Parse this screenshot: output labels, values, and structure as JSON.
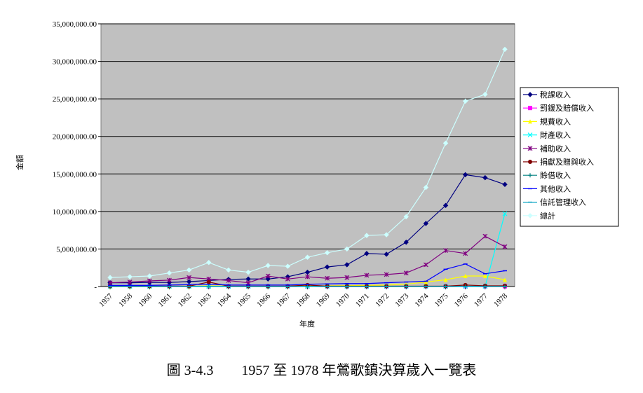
{
  "caption": "圖 3-4.3　　1957 至 1978 年鶯歌鎮決算歲入一覽表",
  "chart_data": {
    "type": "line",
    "title": "",
    "xlabel": "年度",
    "ylabel": "金額",
    "ylim": [
      0,
      35000000
    ],
    "y_ticks": [
      "-",
      "5,000,000.00",
      "10,000,000.00",
      "15,000,000.00",
      "20,000,000.00",
      "25,000,000.00",
      "30,000,000.00",
      "35,000,000.00"
    ],
    "grid": true,
    "legend_position": "right",
    "plot_background": "#c0c0c0",
    "x": [
      "1957",
      "1958",
      "1960",
      "1961",
      "1962",
      "1963",
      "1964",
      "1965",
      "1966",
      "1967",
      "1968",
      "1969",
      "1970",
      "1971",
      "1972",
      "1973",
      "1974",
      "1975",
      "1976",
      "1977",
      "1978"
    ],
    "series": [
      {
        "name": "稅課收入",
        "color": "#000080",
        "marker": "diamond",
        "values": [
          500000,
          500000,
          550000,
          550000,
          650000,
          800000,
          950000,
          1000000,
          1000000,
          1300000,
          1900000,
          2600000,
          2900000,
          4400000,
          4300000,
          5900000,
          8400000,
          10800000,
          14900000,
          14500000,
          13600000
        ]
      },
      {
        "name": "罰鍰及賠償收入",
        "color": "#ff00ff",
        "marker": "square",
        "values": [
          20000,
          20000,
          20000,
          20000,
          20000,
          20000,
          20000,
          20000,
          20000,
          20000,
          20000,
          20000,
          20000,
          20000,
          20000,
          20000,
          30000,
          30000,
          30000,
          30000,
          30000
        ]
      },
      {
        "name": "規費收入",
        "color": "#ffff00",
        "marker": "triangle",
        "values": [
          10000,
          10000,
          10000,
          10000,
          10000,
          100000,
          50000,
          30000,
          30000,
          50000,
          80000,
          100000,
          120000,
          150000,
          200000,
          300000,
          600000,
          900000,
          1400000,
          1400000,
          900000
        ]
      },
      {
        "name": "財產收入",
        "color": "#00ffff",
        "marker": "x",
        "values": [
          20000,
          20000,
          20000,
          20000,
          20000,
          20000,
          20000,
          20000,
          20000,
          20000,
          20000,
          20000,
          20000,
          20000,
          20000,
          20000,
          20000,
          20000,
          20000,
          20000,
          9700000
        ]
      },
      {
        "name": "補助收入",
        "color": "#800080",
        "marker": "star",
        "values": [
          500000,
          600000,
          750000,
          850000,
          1200000,
          1000000,
          800000,
          500000,
          1400000,
          1000000,
          1300000,
          1100000,
          1200000,
          1500000,
          1600000,
          1800000,
          2900000,
          4800000,
          4400000,
          6700000,
          5300000
        ]
      },
      {
        "name": "捐獻及贈與收入",
        "color": "#800000",
        "marker": "circle",
        "values": [
          50000,
          50000,
          50000,
          50000,
          50000,
          600000,
          50000,
          50000,
          50000,
          50000,
          200000,
          50000,
          50000,
          50000,
          50000,
          50000,
          50000,
          50000,
          200000,
          100000,
          100000
        ]
      },
      {
        "name": "賒借收入",
        "color": "#008080",
        "marker": "plus",
        "values": [
          0,
          0,
          0,
          0,
          0,
          0,
          0,
          0,
          0,
          0,
          0,
          0,
          0,
          0,
          0,
          0,
          0,
          0,
          0,
          0,
          0
        ]
      },
      {
        "name": "其他收入",
        "color": "#0000ff",
        "marker": "dash",
        "values": [
          150000,
          150000,
          150000,
          200000,
          250000,
          300000,
          200000,
          200000,
          200000,
          200000,
          300000,
          350000,
          400000,
          400000,
          500000,
          600000,
          700000,
          2300000,
          3000000,
          1700000,
          2100000
        ]
      },
      {
        "name": "信託管理收入",
        "color": "#00a0c0",
        "marker": "dash",
        "values": [
          0,
          0,
          0,
          0,
          0,
          0,
          0,
          0,
          0,
          0,
          0,
          0,
          0,
          0,
          0,
          0,
          0,
          0,
          0,
          0,
          0
        ]
      },
      {
        "name": "總計",
        "color": "#ccffff",
        "marker": "diamond",
        "values": [
          1200000,
          1300000,
          1400000,
          1800000,
          2200000,
          3200000,
          2200000,
          1900000,
          2800000,
          2700000,
          3900000,
          4500000,
          5000000,
          6800000,
          6900000,
          9300000,
          13200000,
          19100000,
          24700000,
          25600000,
          31600000
        ]
      }
    ]
  }
}
